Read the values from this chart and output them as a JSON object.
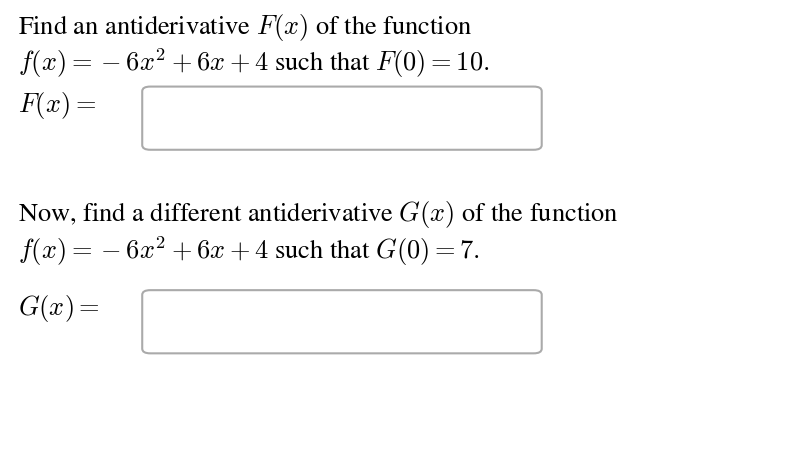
{
  "background_color": "#ffffff",
  "text_color": "#000000",
  "line1": "Find an antiderivative $F(x)$ of the function",
  "line2": "$f(x) = -6x^2 + 6x + 4$ such that $F(0) = 10.$",
  "label_F": "$F(x) =$",
  "line3": "Now, find a different antiderivative $G(x)$ of the function",
  "line4": "$f(x) = -6x^2 + 6x + 4$ such that $G(0) = 7.$",
  "label_G": "$G(x) =$",
  "box_edge_color": "#aaaaaa",
  "box_face_color": "#ffffff",
  "fontsize_text": 19,
  "fontsize_label": 19,
  "fig_width": 7.99,
  "fig_height": 4.68,
  "dpi": 100
}
